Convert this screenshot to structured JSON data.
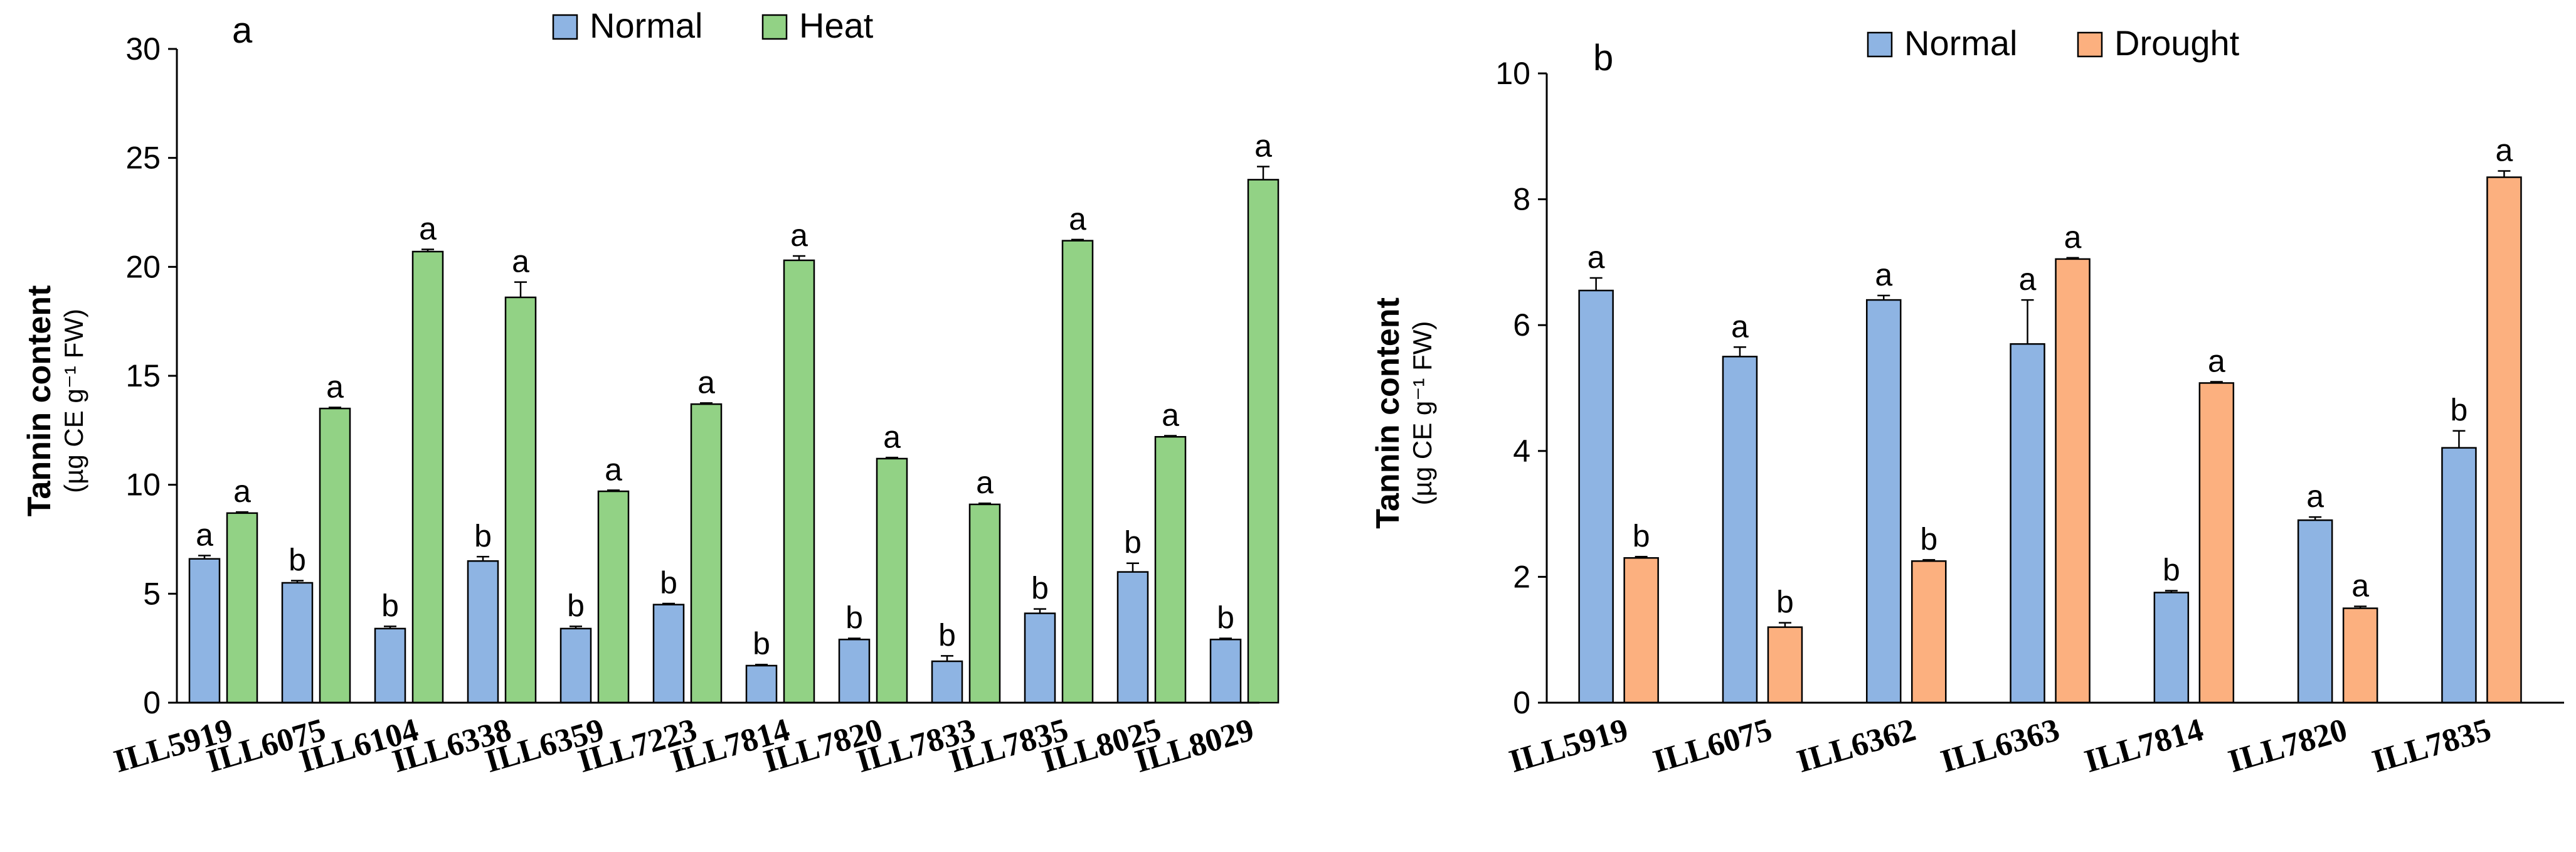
{
  "figure": {
    "panels": [
      "a",
      "b"
    ]
  },
  "chart_data": [
    {
      "type": "bar",
      "panel_label": "a",
      "ylabel_main": "Tannin content",
      "ylabel_sub": "(µg CE g⁻¹ FW)",
      "ylim": [
        0,
        30
      ],
      "yticks": [
        0,
        5,
        10,
        15,
        20,
        25,
        30
      ],
      "categories": [
        "ILL5919",
        "ILL6075",
        "ILL6104",
        "ILL6338",
        "ILL6359",
        "ILL7223",
        "ILL7814",
        "ILL7820",
        "ILL7833",
        "ILL7835",
        "ILL8025",
        "ILL8029"
      ],
      "series": [
        {
          "name": "Normal",
          "color": "#8eb4e3",
          "values": [
            6.6,
            5.5,
            3.4,
            6.5,
            3.4,
            4.5,
            1.7,
            2.9,
            1.9,
            4.1,
            6.0,
            2.9
          ],
          "errors": [
            0.15,
            0.1,
            0.1,
            0.2,
            0.1,
            0.05,
            0.05,
            0.05,
            0.25,
            0.2,
            0.4,
            0.05
          ],
          "letters": [
            "a",
            "b",
            "b",
            "b",
            "b",
            "b",
            "b",
            "b",
            "b",
            "b",
            "b",
            "b"
          ]
        },
        {
          "name": "Heat",
          "color": "#92d285",
          "values": [
            8.7,
            13.5,
            20.7,
            18.6,
            9.7,
            13.7,
            20.3,
            11.2,
            9.1,
            21.2,
            12.2,
            24.0
          ],
          "errors": [
            0.05,
            0.05,
            0.1,
            0.7,
            0.05,
            0.05,
            0.2,
            0.05,
            0.05,
            0.05,
            0.05,
            0.6
          ],
          "letters": [
            "a",
            "a",
            "a",
            "a",
            "a",
            "a",
            "a",
            "a",
            "a",
            "a",
            "a",
            "a"
          ]
        }
      ]
    },
    {
      "type": "bar",
      "panel_label": "b",
      "ylabel_main": "Tannin content",
      "ylabel_sub": "(µg CE g⁻¹ FW)",
      "ylim": [
        0,
        10
      ],
      "yticks": [
        0,
        2,
        4,
        6,
        8,
        10
      ],
      "categories": [
        "ILL5919",
        "ILL6075",
        "ILL6362",
        "ILL6363",
        "ILL7814",
        "ILL7820",
        "ILL7835"
      ],
      "series": [
        {
          "name": "Normal",
          "color": "#8eb4e3",
          "values": [
            6.55,
            5.5,
            6.4,
            5.7,
            1.75,
            2.9,
            4.05
          ],
          "errors": [
            0.2,
            0.15,
            0.07,
            0.7,
            0.03,
            0.05,
            0.27
          ],
          "letters": [
            "a",
            "a",
            "a",
            "a",
            "b",
            "a",
            "b"
          ]
        },
        {
          "name": "Drought",
          "color": "#fcb07f",
          "values": [
            2.3,
            1.2,
            2.25,
            7.05,
            5.08,
            1.5,
            8.35
          ],
          "errors": [
            0.02,
            0.07,
            0.02,
            0.02,
            0.02,
            0.03,
            0.1
          ],
          "letters": [
            "b",
            "b",
            "b",
            "a",
            "a",
            "a",
            "a"
          ]
        }
      ]
    }
  ]
}
